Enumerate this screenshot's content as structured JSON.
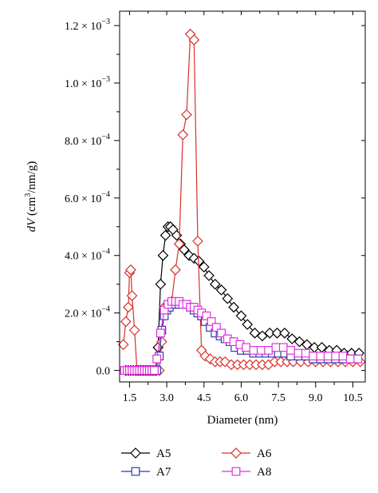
{
  "chart_data": {
    "type": "line",
    "xlabel": "Diameter (nm)",
    "ylabel": "dV (cm³/nm/g)",
    "xlim": [
      1.1,
      11.0
    ],
    "ylim": [
      -4e-05,
      0.00125
    ],
    "x_ticks": [
      {
        "value": 1.5,
        "label": "1.5"
      },
      {
        "value": 3.0,
        "label": "3.0"
      },
      {
        "value": 4.5,
        "label": "4.5"
      },
      {
        "value": 6.0,
        "label": "6.0"
      },
      {
        "value": 7.5,
        "label": "7.5"
      },
      {
        "value": 9.0,
        "label": "9.0"
      },
      {
        "value": 10.5,
        "label": "10.5"
      }
    ],
    "y_ticks": [
      {
        "value": 0,
        "label": "0.0"
      },
      {
        "value": 0.0002,
        "label": "2.0 × 10",
        "exp": "−4"
      },
      {
        "value": 0.0004,
        "label": "4.0 × 10",
        "exp": "−4"
      },
      {
        "value": 0.0006,
        "label": "6.0 × 10",
        "exp": "−4"
      },
      {
        "value": 0.0008,
        "label": "8.0 × 10",
        "exp": "−4"
      },
      {
        "value": 0.001,
        "label": "1.0 × 10",
        "exp": "−3"
      },
      {
        "value": 0.0012,
        "label": "1.2 × 10",
        "exp": "−3"
      }
    ],
    "legend_position": "bottom",
    "series": [
      {
        "name": "A5",
        "color": "#000000",
        "marker": "diamond",
        "x": [
          1.35,
          1.45,
          1.55,
          1.65,
          1.75,
          1.85,
          1.95,
          2.05,
          2.15,
          2.25,
          2.35,
          2.45,
          2.55,
          2.65,
          2.75,
          2.85,
          2.95,
          3.05,
          3.15,
          3.25,
          3.4,
          3.55,
          3.7,
          3.9,
          4.1,
          4.3,
          4.5,
          4.7,
          4.95,
          5.2,
          5.45,
          5.7,
          6.0,
          6.25,
          6.55,
          6.85,
          7.15,
          7.45,
          7.75,
          8.05,
          8.35,
          8.65,
          8.95,
          9.25,
          9.55,
          9.85,
          10.15,
          10.45,
          10.75
        ],
        "y": [
          0,
          0,
          0,
          0,
          0,
          0,
          0,
          0,
          0,
          0,
          0,
          0,
          0,
          8e-05,
          0.0003,
          0.0004,
          0.00047,
          0.0005,
          0.0005,
          0.00049,
          0.00047,
          0.00044,
          0.00042,
          0.0004,
          0.00039,
          0.00038,
          0.00036,
          0.00033,
          0.0003,
          0.00028,
          0.00025,
          0.00022,
          0.00019,
          0.00016,
          0.00013,
          0.00012,
          0.00013,
          0.00013,
          0.00013,
          0.00011,
          0.0001,
          9e-05,
          8e-05,
          8e-05,
          7e-05,
          7e-05,
          6e-05,
          6e-05,
          6e-05
        ]
      },
      {
        "name": "A6",
        "color": "#d9302c",
        "marker": "diamond",
        "x": [
          1.25,
          1.35,
          1.45,
          1.5,
          1.55,
          1.6,
          1.7,
          1.8,
          1.9,
          2.0,
          2.1,
          2.2,
          2.3,
          2.4,
          2.5,
          2.6,
          2.7,
          2.8,
          2.9,
          3.05,
          3.2,
          3.35,
          3.5,
          3.65,
          3.8,
          3.95,
          4.1,
          4.25,
          4.4,
          4.55,
          4.75,
          4.95,
          5.15,
          5.35,
          5.6,
          5.85,
          6.1,
          6.35,
          6.6,
          6.85,
          7.1,
          7.35,
          7.6,
          7.85,
          8.1,
          8.4,
          8.7,
          9.0,
          9.3,
          9.6,
          9.9,
          10.2,
          10.5,
          10.8
        ],
        "y": [
          9e-05,
          0.00017,
          0.00022,
          0.00034,
          0.00035,
          0.00026,
          0.00014,
          0,
          0,
          0,
          0,
          0,
          0,
          0,
          0,
          0,
          0,
          0.0001,
          0.00022,
          0.00023,
          0.00024,
          0.00035,
          0.00044,
          0.00082,
          0.00089,
          0.00117,
          0.00115,
          0.00045,
          7e-05,
          5e-05,
          4e-05,
          3e-05,
          3e-05,
          3e-05,
          2e-05,
          2e-05,
          2e-05,
          2e-05,
          2e-05,
          2e-05,
          2e-05,
          3e-05,
          3e-05,
          3e-05,
          3e-05,
          3e-05,
          3e-05,
          3e-05,
          3e-05,
          3e-05,
          3e-05,
          3e-05,
          3e-05,
          3e-05
        ]
      },
      {
        "name": "A7",
        "color": "#2e3aa8",
        "marker": "square",
        "x": [
          1.4,
          1.5,
          1.6,
          1.7,
          1.8,
          1.9,
          2.0,
          2.1,
          2.2,
          2.3,
          2.4,
          2.5,
          2.6,
          2.7,
          2.8,
          2.9,
          3.0,
          3.1,
          3.2,
          3.35,
          3.5,
          3.65,
          3.8,
          3.95,
          4.1,
          4.25,
          4.4,
          4.55,
          4.75,
          4.95,
          5.15,
          5.35,
          5.55,
          5.75,
          6.0,
          6.25,
          6.5,
          6.75,
          7.0,
          7.25,
          7.5,
          7.75,
          8.0,
          8.3,
          8.6,
          8.9,
          9.2,
          9.5,
          9.8,
          10.1,
          10.4,
          10.7
        ],
        "y": [
          0,
          0,
          0,
          0,
          0,
          0,
          0,
          0,
          0,
          0,
          0,
          0,
          0,
          5e-05,
          0.00014,
          0.00019,
          0.00021,
          0.00022,
          0.00023,
          0.00023,
          0.00023,
          0.00023,
          0.00023,
          0.00022,
          0.00021,
          0.0002,
          0.00019,
          0.00017,
          0.00015,
          0.00013,
          0.00012,
          0.00011,
          0.0001,
          8e-05,
          7e-05,
          7e-05,
          6e-05,
          6e-05,
          6e-05,
          6e-05,
          6e-05,
          6e-05,
          5e-05,
          5e-05,
          5e-05,
          4e-05,
          4e-05,
          4e-05,
          4e-05,
          4e-05,
          4e-05,
          4e-05
        ]
      },
      {
        "name": "A8",
        "color": "#e02ee0",
        "marker": "square",
        "x": [
          1.3,
          1.4,
          1.5,
          1.6,
          1.7,
          1.8,
          1.9,
          2.0,
          2.1,
          2.2,
          2.3,
          2.4,
          2.5,
          2.6,
          2.75,
          2.9,
          3.05,
          3.2,
          3.35,
          3.5,
          3.65,
          3.8,
          3.95,
          4.1,
          4.25,
          4.4,
          4.6,
          4.8,
          5.0,
          5.2,
          5.45,
          5.7,
          5.95,
          6.2,
          6.5,
          6.8,
          7.1,
          7.4,
          7.7,
          8.0,
          8.3,
          8.6,
          8.9,
          9.2,
          9.5,
          9.8,
          10.1,
          10.4,
          10.7
        ],
        "y": [
          0,
          0,
          0,
          0,
          0,
          0,
          0,
          0,
          0,
          0,
          0,
          0,
          0,
          4e-05,
          0.00013,
          0.00021,
          0.00023,
          0.00024,
          0.00024,
          0.00024,
          0.00023,
          0.00023,
          0.00022,
          0.00022,
          0.00021,
          0.0002,
          0.00019,
          0.00017,
          0.00015,
          0.00013,
          0.00011,
          0.0001,
          9e-05,
          8e-05,
          7e-05,
          7e-05,
          7e-05,
          8e-05,
          8e-05,
          7e-05,
          6e-05,
          6e-05,
          5e-05,
          5e-05,
          5e-05,
          5e-05,
          5e-05,
          4e-05,
          4e-05
        ]
      }
    ]
  }
}
